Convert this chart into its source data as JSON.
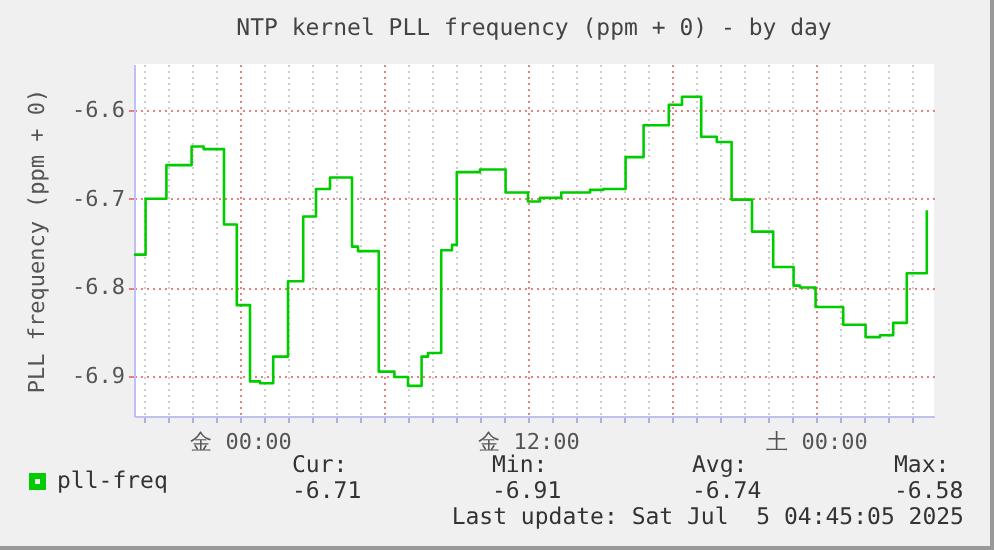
{
  "chart_data": {
    "type": "step",
    "title": "NTP kernel PLL frequency (ppm + 0) - by day",
    "ylabel": "PLL frequency (ppm + 0)",
    "x": [
      "2025-07-03T19:35",
      "2025-07-03T20:04",
      "2025-07-03T20:56",
      "2025-07-03T21:59",
      "2025-07-03T22:29",
      "2025-07-03T23:20",
      "2025-07-03T23:52",
      "2025-07-04T00:25",
      "2025-07-04T00:50",
      "2025-07-04T01:23",
      "2025-07-04T02:00",
      "2025-07-04T02:38",
      "2025-07-04T03:10",
      "2025-07-04T03:45",
      "2025-07-04T04:40",
      "2025-07-04T04:55",
      "2025-07-04T05:47",
      "2025-07-04T06:26",
      "2025-07-04T07:00",
      "2025-07-04T07:34",
      "2025-07-04T07:50",
      "2025-07-04T08:23",
      "2025-07-04T08:50",
      "2025-07-04T09:02",
      "2025-07-04T10:00",
      "2025-07-04T11:04",
      "2025-07-04T12:00",
      "2025-07-04T12:30",
      "2025-07-04T13:23",
      "2025-07-04T14:35",
      "2025-07-04T15:08",
      "2025-07-04T16:04",
      "2025-07-04T16:49",
      "2025-07-04T17:52",
      "2025-07-04T18:25",
      "2025-07-04T19:13",
      "2025-07-04T19:52",
      "2025-07-04T20:29",
      "2025-07-04T21:20",
      "2025-07-04T22:13",
      "2025-07-04T23:04",
      "2025-07-04T23:20",
      "2025-07-04T23:59",
      "2025-07-05T01:08",
      "2025-07-05T02:04",
      "2025-07-05T02:40",
      "2025-07-05T03:13",
      "2025-07-05T03:47",
      "2025-07-05T04:37"
    ],
    "series": [
      {
        "name": "pll-freq",
        "color": "#00cc00",
        "values": [
          -6.763,
          -6.7,
          -6.662,
          -6.641,
          -6.644,
          -6.729,
          -6.82,
          -6.906,
          -6.908,
          -6.878,
          -6.793,
          -6.72,
          -6.689,
          -6.676,
          -6.754,
          -6.759,
          -6.895,
          -6.901,
          -6.911,
          -6.878,
          -6.874,
          -6.758,
          -6.752,
          -6.67,
          -6.667,
          -6.693,
          -6.703,
          -6.699,
          -6.693,
          -6.69,
          -6.689,
          -6.653,
          -6.617,
          -6.594,
          -6.585,
          -6.63,
          -6.636,
          -6.701,
          -6.737,
          -6.777,
          -6.798,
          -6.8,
          -6.822,
          -6.842,
          -6.856,
          -6.854,
          -6.84,
          -6.784,
          -6.713
        ]
      }
    ],
    "xlim": [
      "2025-07-03T19:35",
      "2025-07-05T04:55"
    ],
    "xticks": [
      {
        "value": "2025-07-03T20:00",
        "label": null
      },
      {
        "value": "2025-07-03T21:00",
        "label": null
      },
      {
        "value": "2025-07-03T22:00",
        "label": null
      },
      {
        "value": "2025-07-03T23:00",
        "label": null
      },
      {
        "value": "2025-07-04T00:00",
        "label": "金 00:00"
      },
      {
        "value": "2025-07-04T01:00",
        "label": null
      },
      {
        "value": "2025-07-04T02:00",
        "label": null
      },
      {
        "value": "2025-07-04T03:00",
        "label": null
      },
      {
        "value": "2025-07-04T04:00",
        "label": null
      },
      {
        "value": "2025-07-04T05:00",
        "label": null
      },
      {
        "value": "2025-07-04T06:00",
        "label": null
      },
      {
        "value": "2025-07-04T07:00",
        "label": null
      },
      {
        "value": "2025-07-04T08:00",
        "label": null
      },
      {
        "value": "2025-07-04T09:00",
        "label": null
      },
      {
        "value": "2025-07-04T10:00",
        "label": null
      },
      {
        "value": "2025-07-04T11:00",
        "label": null
      },
      {
        "value": "2025-07-04T12:00",
        "label": "金 12:00"
      },
      {
        "value": "2025-07-04T13:00",
        "label": null
      },
      {
        "value": "2025-07-04T14:00",
        "label": null
      },
      {
        "value": "2025-07-04T15:00",
        "label": null
      },
      {
        "value": "2025-07-04T16:00",
        "label": null
      },
      {
        "value": "2025-07-04T17:00",
        "label": null
      },
      {
        "value": "2025-07-04T18:00",
        "label": null
      },
      {
        "value": "2025-07-04T19:00",
        "label": null
      },
      {
        "value": "2025-07-04T20:00",
        "label": null
      },
      {
        "value": "2025-07-04T21:00",
        "label": null
      },
      {
        "value": "2025-07-04T22:00",
        "label": null
      },
      {
        "value": "2025-07-04T23:00",
        "label": null
      },
      {
        "value": "2025-07-05T00:00",
        "label": "土 00:00"
      },
      {
        "value": "2025-07-05T01:00",
        "label": null
      },
      {
        "value": "2025-07-05T02:00",
        "label": null
      },
      {
        "value": "2025-07-05T03:00",
        "label": null
      },
      {
        "value": "2025-07-05T04:00",
        "label": null
      }
    ],
    "ylim": [
      -6.945,
      -6.548
    ],
    "yticks": [
      -6.9,
      -6.8,
      -6.7,
      -6.6
    ],
    "grid": true,
    "legend": "bottom",
    "line_style": "solid",
    "annotations": [
      "Cur:",
      "-6.71",
      "Min:",
      "-6.91",
      "Avg:",
      "-6.74",
      "Max:",
      "-6.58",
      "Last update: Sat Jul  5 04:45:05 2025"
    ]
  }
}
